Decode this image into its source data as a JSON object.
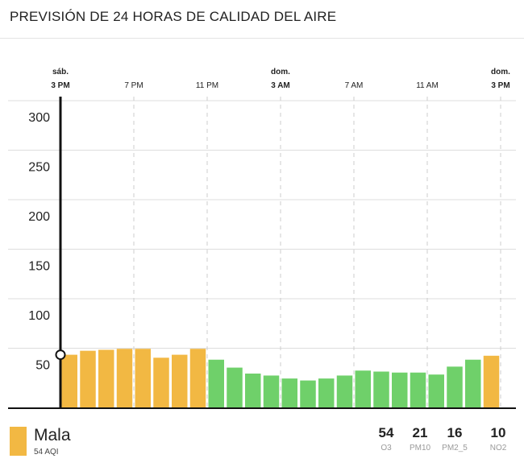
{
  "header": {
    "title": "PREVISIÓN DE 24 HORAS DE CALIDAD DEL AIRE"
  },
  "colors": {
    "bad": "#F2B843",
    "moderate": "#6FD06A",
    "axis": "#111111",
    "grid": "#DDDDDD",
    "gridDash": "#CCCCCC"
  },
  "chart_data": {
    "type": "bar",
    "title": "PREVISIÓN DE 24 HORAS DE CALIDAD DEL AIRE",
    "ylim": [
      0,
      300
    ],
    "yticks": [
      50,
      100,
      150,
      200,
      250,
      300
    ],
    "x_time_labels": [
      {
        "index": 0,
        "day": "sáb.",
        "time": "3 PM",
        "bold": true
      },
      {
        "index": 4,
        "day": "",
        "time": "7 PM",
        "bold": false
      },
      {
        "index": 8,
        "day": "",
        "time": "11 PM",
        "bold": false
      },
      {
        "index": 12,
        "day": "dom.",
        "time": "3 AM",
        "bold": true
      },
      {
        "index": 16,
        "day": "",
        "time": "7 AM",
        "bold": false
      },
      {
        "index": 20,
        "day": "",
        "time": "11 AM",
        "bold": false
      },
      {
        "index": 24,
        "day": "dom.",
        "time": "3 PM",
        "bold": true
      }
    ],
    "values": [
      54,
      58,
      59,
      60,
      60,
      51,
      54,
      60,
      49,
      41,
      35,
      33,
      30,
      28,
      30,
      33,
      38,
      37,
      36,
      36,
      34,
      42,
      49,
      53
    ],
    "categories_color": [
      "bad",
      "bad",
      "bad",
      "bad",
      "bad",
      "bad",
      "bad",
      "bad",
      "moderate",
      "moderate",
      "moderate",
      "moderate",
      "moderate",
      "moderate",
      "moderate",
      "moderate",
      "moderate",
      "moderate",
      "moderate",
      "moderate",
      "moderate",
      "moderate",
      "moderate",
      "bad"
    ],
    "current_index": 0,
    "current_value": 54
  },
  "summary": {
    "status": "Mala",
    "aqi_text": "54 AQI",
    "pollutants": [
      {
        "value": "54",
        "name": "O3"
      },
      {
        "value": "21",
        "name": "PM10"
      },
      {
        "value": "16",
        "name": "PM2_5"
      },
      {
        "value": "10",
        "name": "NO2"
      }
    ]
  }
}
